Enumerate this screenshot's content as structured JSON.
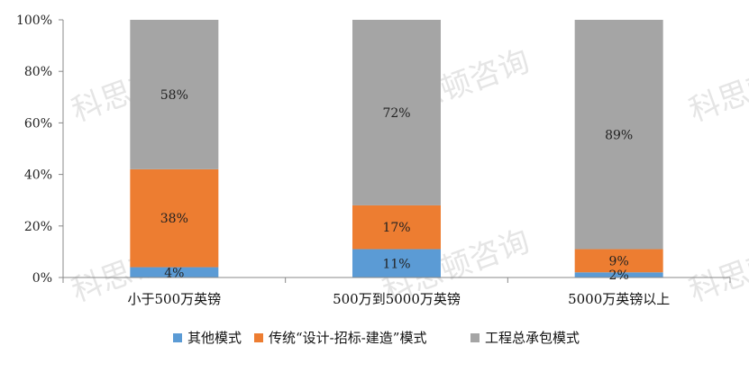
{
  "chart_data": {
    "type": "bar",
    "stacked": true,
    "percent": true,
    "title": "",
    "xlabel": "",
    "ylabel": "",
    "ylim": [
      0,
      100
    ],
    "yticks": [
      "0%",
      "20%",
      "40%",
      "60%",
      "80%",
      "100%"
    ],
    "categories": [
      "小于500万英镑",
      "500万到5000万英镑",
      "5000万英镑以上"
    ],
    "series": [
      {
        "name": "其他模式",
        "color": "#5b9bd5",
        "values": [
          4,
          11,
          2
        ],
        "labels": [
          "4%",
          "11%",
          "2%"
        ]
      },
      {
        "name": "传统“设计-招标-建造”模式",
        "color": "#ed7d31",
        "values": [
          38,
          17,
          9
        ],
        "labels": [
          "38%",
          "17%",
          "9%"
        ]
      },
      {
        "name": "工程总承包模式",
        "color": "#a5a5a5",
        "values": [
          58,
          72,
          89
        ],
        "labels": [
          "58%",
          "72%",
          "89%"
        ]
      }
    ],
    "legend_position": "bottom",
    "grid": false
  },
  "watermark": {
    "text": "科思顿咨询"
  }
}
